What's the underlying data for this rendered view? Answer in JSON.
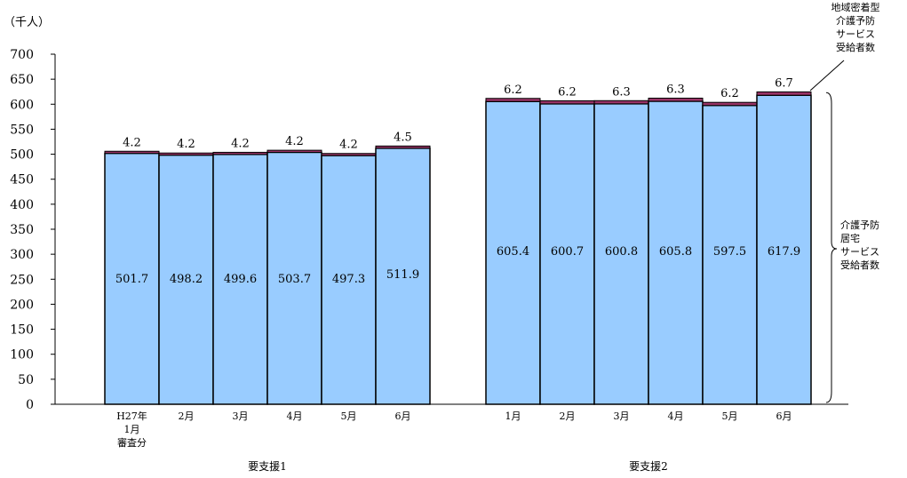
{
  "chart_data": {
    "type": "bar",
    "stacked": true,
    "unit_label": "（千人）",
    "ylim": [
      0,
      700
    ],
    "yticks": [
      "0",
      "50",
      "100",
      "150",
      "200",
      "250",
      "300",
      "350",
      "400",
      "450",
      "500",
      "550",
      "600",
      "650",
      "700"
    ],
    "groups": [
      {
        "label": "要支援1",
        "categories": [
          [
            "H27年",
            "1月",
            "審査分"
          ],
          [
            "2月"
          ],
          [
            "3月"
          ],
          [
            "4月"
          ],
          [
            "5月"
          ],
          [
            "6月"
          ]
        ]
      },
      {
        "label": "要支援2",
        "categories": [
          [
            "1月"
          ],
          [
            "2月"
          ],
          [
            "3月"
          ],
          [
            "4月"
          ],
          [
            "5月"
          ],
          [
            "6月"
          ]
        ]
      }
    ],
    "series": [
      {
        "name": "介護予防居宅サービス受給者数",
        "name_lines": [
          "介護予防",
          "居宅",
          "サービス",
          "受給者数"
        ],
        "color": "#99ccff",
        "values": [
          501.7,
          498.2,
          499.6,
          503.7,
          497.3,
          511.9,
          605.4,
          600.7,
          600.8,
          605.8,
          597.5,
          617.9
        ],
        "labels": [
          "501.7",
          "498.2",
          "499.6",
          "503.7",
          "497.3",
          "511.9",
          "605.4",
          "600.7",
          "600.8",
          "605.8",
          "597.5",
          "617.9"
        ]
      },
      {
        "name": "地域密着型介護予防サービス受給者数",
        "name_lines": [
          "地域密着型",
          "介護予防",
          "サービス",
          "受給者数"
        ],
        "color": "#993366",
        "values": [
          4.2,
          4.2,
          4.2,
          4.2,
          4.2,
          4.5,
          6.2,
          6.2,
          6.3,
          6.3,
          6.2,
          6.7
        ],
        "labels": [
          "4.2",
          "4.2",
          "4.2",
          "4.2",
          "4.2",
          "4.5",
          "6.2",
          "6.2",
          "6.3",
          "6.3",
          "6.2",
          "6.7"
        ]
      }
    ]
  }
}
